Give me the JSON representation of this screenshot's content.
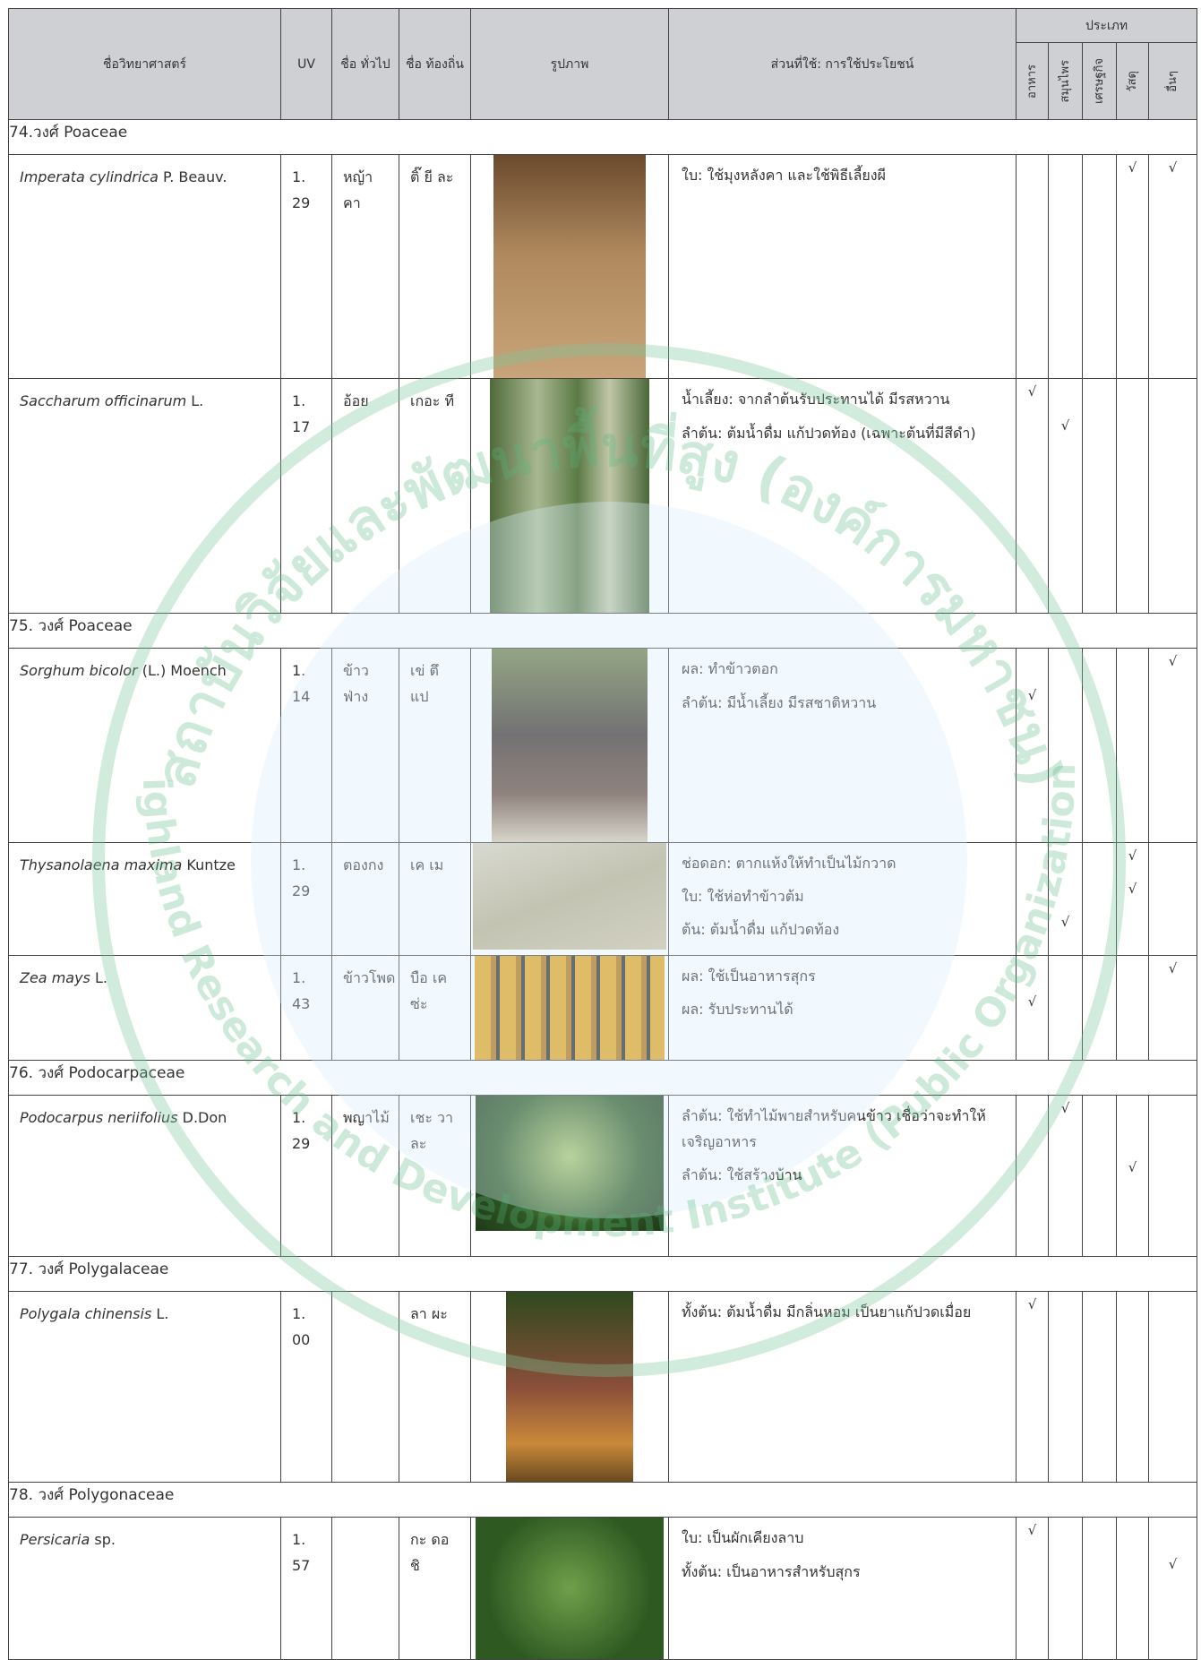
{
  "header": {
    "scientific_name": "ชื่อวิทยาศาสตร์",
    "uv": "UV",
    "common_name": "ชื่อ ทั่วไป",
    "local_name": "ชื่อ ท้องถิ่น",
    "picture": "รูปภาพ",
    "uses": "ส่วนที่ใช้: การใช้ประโยชน์",
    "type": "ประเภท",
    "type_columns": [
      "อาหาร",
      "สมุนไพร",
      "เศรษฐกิจ",
      "วัสดุ",
      "อื่นๆ"
    ]
  },
  "watermark": {
    "thai": "สถาบันวิจัยและพัฒนาพื้นที่สูง (องค์การมหาชน)",
    "english": "Highland Research and Development Institute (Public Organization)"
  },
  "sections": [
    {
      "family": "74.วงศ์  Poaceae",
      "rows": [
        {
          "name": "Imperata cylindrica",
          "author": "P. Beauv.",
          "uv": "1.29",
          "common": "หญ้าคา",
          "local": "ติ๊ ยี ละ",
          "uses": [
            {
              "text": "ใบ: ใช้มุงหลังคา และใช้พิธีเลี้ยงผี",
              "marks": [
                null,
                null,
                null,
                "√",
                "√"
              ]
            }
          ]
        },
        {
          "name": "Saccharum officinarum",
          "author": "L.",
          "uv": "1.17",
          "common": "อ้อย",
          "local": "เกอะ ที",
          "uses": [
            {
              "text": "น้ำเลี้ยง: จากลำต้นรับประทานได้ มีรสหวาน",
              "marks": [
                "√",
                null,
                null,
                null,
                null
              ]
            },
            {
              "text": "ลำต้น: ต้มน้ำดื่ม แก้ปวดท้อง (เฉพาะต้นที่มีสีดำ)",
              "marks": [
                null,
                "√",
                null,
                null,
                null
              ]
            }
          ]
        }
      ]
    },
    {
      "family": "75.  วงศ์ Poaceae",
      "rows": [
        {
          "name": "Sorghum bicolor",
          "author": "(L.) Moench",
          "uv": "1.14",
          "common": "ข้าวฟ่าง",
          "local": "เข่ ตึ แป",
          "uses": [
            {
              "text": "ผล: ทำข้าวตอก",
              "marks": [
                null,
                null,
                null,
                null,
                "√"
              ]
            },
            {
              "text": "ลำต้น: มีน้ำเลี้ยง มีรสชาติหวาน",
              "marks": [
                "√",
                null,
                null,
                null,
                null
              ]
            }
          ]
        },
        {
          "name": "Thysanolaena maxima",
          "author": "Kuntze",
          "uv": "1.29",
          "common": "ตองกง",
          "local": "เค เม",
          "uses": [
            {
              "text": "ช่อดอก: ตากแห้งให้ทำเป็นไม้กวาด",
              "marks": [
                null,
                null,
                null,
                "√",
                null
              ]
            },
            {
              "text": "ใบ: ใช้ห่อทำข้าวต้ม",
              "marks": [
                null,
                null,
                null,
                "√",
                null
              ]
            },
            {
              "text": "ต้น: ต้มน้ำดื่ม แก้ปวดท้อง",
              "marks": [
                null,
                "√",
                null,
                null,
                null
              ]
            }
          ]
        },
        {
          "name": "Zea mays",
          "author": "L.",
          "uv": "1.43",
          "common": "ข้าวโพด",
          "local": "บือ เค ซ่ะ",
          "uses": [
            {
              "text": "ผล: ใช้เป็นอาหารสุกร",
              "marks": [
                null,
                null,
                null,
                null,
                "√"
              ]
            },
            {
              "text": "ผล: รับประทานได้",
              "marks": [
                "√",
                null,
                null,
                null,
                null
              ]
            }
          ]
        }
      ]
    },
    {
      "family": "76.  วงศ์ Podocarpaceae",
      "rows": [
        {
          "name": "Podocarpus neriifolius",
          "author": "D.Don",
          "uv": "1.29",
          "common": "พญาไม้",
          "local": "เชะ วา ละ",
          "uses": [
            {
              "text": "ลำต้น: ใช้ทำไม้พายสำหรับคนข้าว เชื่อว่าจะทำให้เจริญอาหาร",
              "marks": [
                null,
                "√",
                null,
                null,
                null
              ]
            },
            {
              "text": "ลำต้น: ใช้สร้างบ้าน",
              "marks": [
                null,
                null,
                null,
                "√",
                null
              ]
            }
          ]
        }
      ]
    },
    {
      "family": "77. วงศ์ Polygalaceae",
      "rows": [
        {
          "name": "Polygala chinensis",
          "author": "L.",
          "uv": "1.00",
          "common": null,
          "local": "ลา ผะ",
          "uses": [
            {
              "text": "ทั้งต้น: ต้มน้ำดื่ม มีกลิ่นหอม เป็นยาแก้ปวดเมื่อย",
              "marks": [
                "√",
                null,
                null,
                null,
                null
              ]
            }
          ]
        }
      ]
    },
    {
      "family": "78. วงศ์ Polygonaceae",
      "rows": [
        {
          "name": "Persicaria",
          "author": "sp.",
          "uv": "1.57",
          "common": null,
          "local": "กะ ดอ ชิ",
          "uses": [
            {
              "text": "ใบ: เป็นผักเคียงลาบ",
              "marks": [
                "√",
                null,
                null,
                null,
                null
              ]
            },
            {
              "text": "ทั้งต้น: เป็นอาหารสำหรับสุกร",
              "marks": [
                null,
                null,
                null,
                null,
                "√"
              ]
            }
          ]
        }
      ]
    }
  ]
}
